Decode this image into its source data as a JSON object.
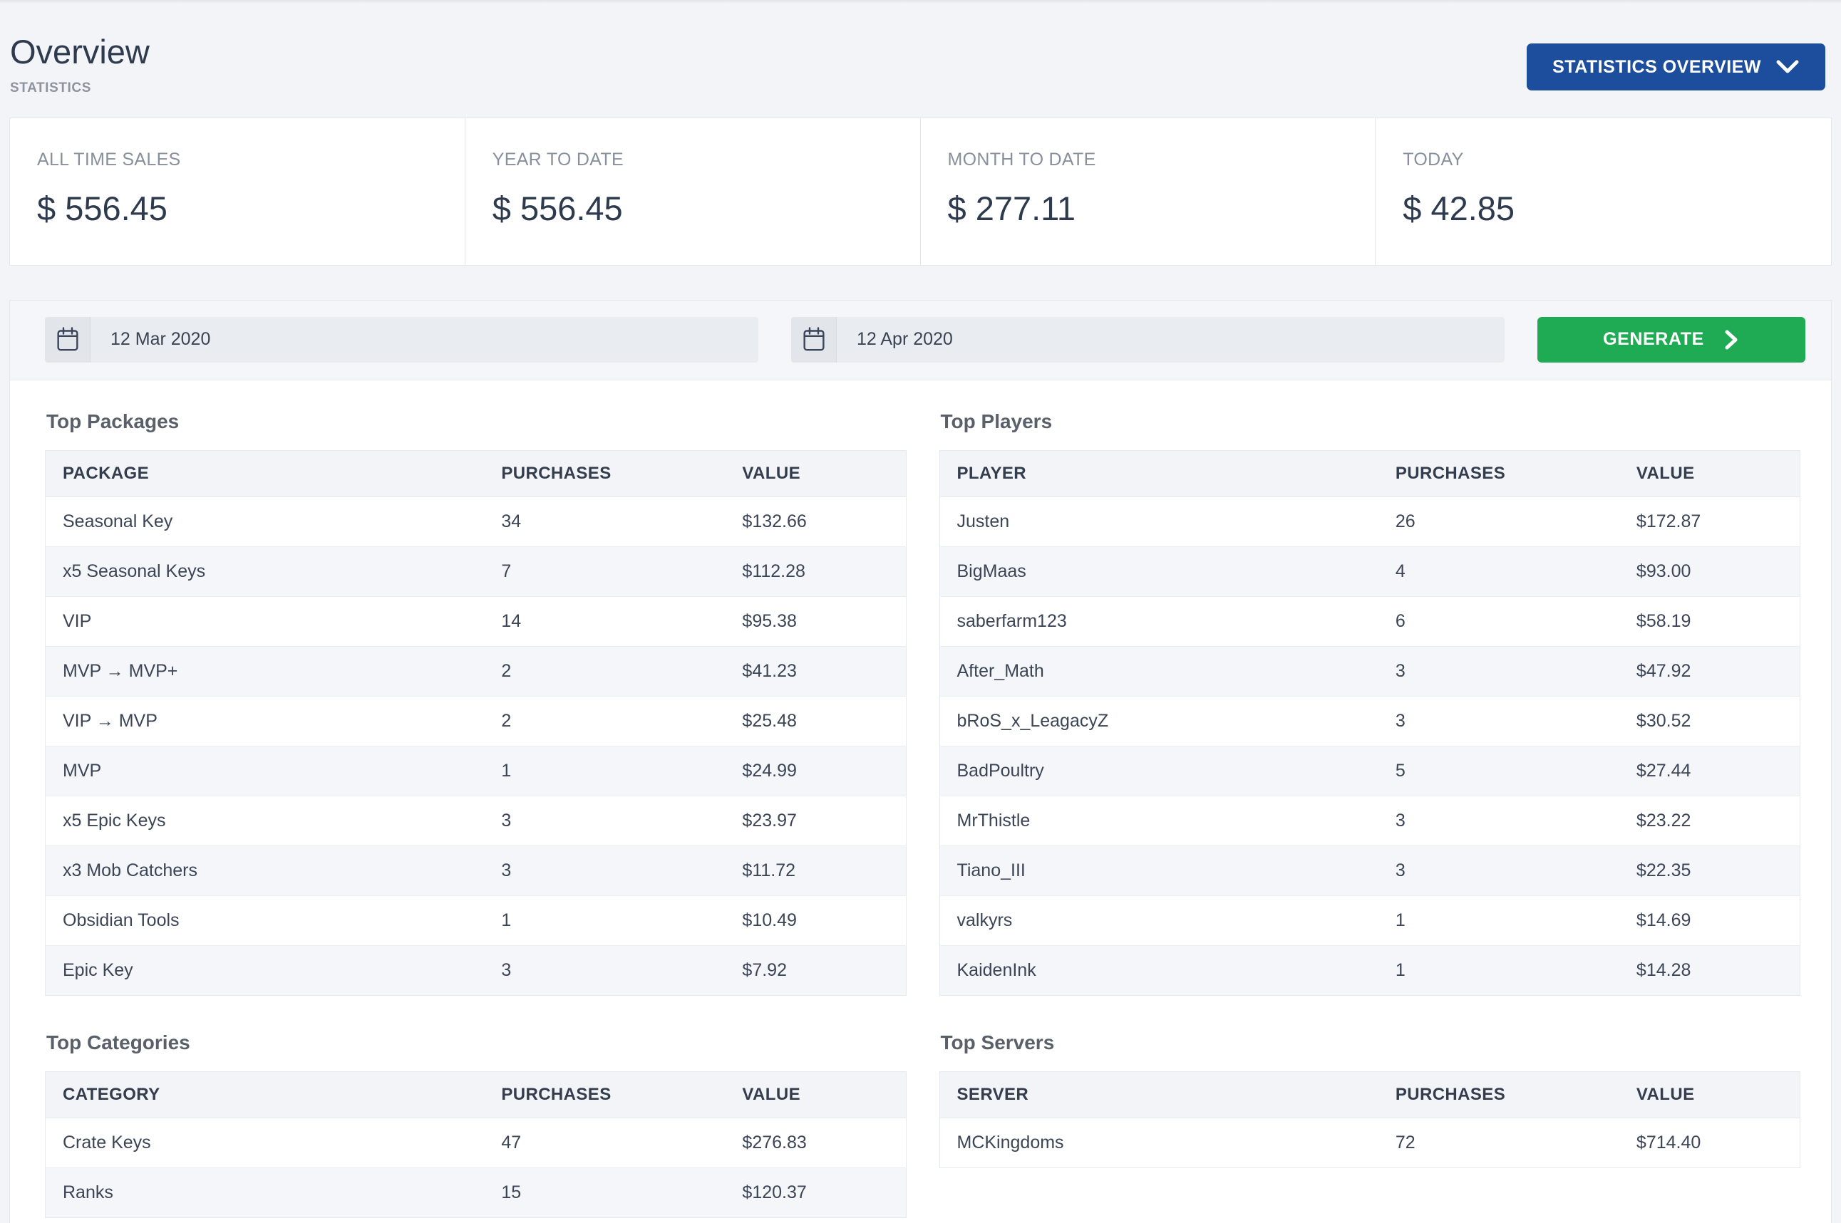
{
  "page": {
    "title": "Overview",
    "subtitle": "STATISTICS"
  },
  "header": {
    "dropdown_label": "STATISTICS OVERVIEW"
  },
  "colors": {
    "accent_blue": "#1d4e9e",
    "accent_green": "#1fab53",
    "text_dark": "#2e3a4d",
    "text_grey": "#87909c",
    "stripe_row": "#f4f6f9"
  },
  "stats": [
    {
      "label": "ALL TIME SALES",
      "value": "$ 556.45"
    },
    {
      "label": "YEAR TO DATE",
      "value": "$ 556.45"
    },
    {
      "label": "MONTH TO DATE",
      "value": "$ 277.11"
    },
    {
      "label": "TODAY",
      "value": "$ 42.85"
    }
  ],
  "filters": {
    "date_from": "12 Mar 2020",
    "date_to": "12 Apr 2020",
    "generate_label": "GENERATE"
  },
  "tables": {
    "top_packages": {
      "title": "Top Packages",
      "columns": [
        "PACKAGE",
        "PURCHASES",
        "VALUE"
      ],
      "rows": [
        [
          "Seasonal Key",
          "34",
          "$132.66"
        ],
        [
          "x5 Seasonal Keys",
          "7",
          "$112.28"
        ],
        [
          "VIP",
          "14",
          "$95.38"
        ],
        [
          "MVP → MVP+",
          "2",
          "$41.23"
        ],
        [
          "VIP → MVP",
          "2",
          "$25.48"
        ],
        [
          "MVP",
          "1",
          "$24.99"
        ],
        [
          "x5 Epic Keys",
          "3",
          "$23.97"
        ],
        [
          "x3 Mob Catchers",
          "3",
          "$11.72"
        ],
        [
          "Obsidian Tools",
          "1",
          "$10.49"
        ],
        [
          "Epic Key",
          "3",
          "$7.92"
        ]
      ]
    },
    "top_players": {
      "title": "Top Players",
      "columns": [
        "PLAYER",
        "PURCHASES",
        "VALUE"
      ],
      "rows": [
        [
          "Justen",
          "26",
          "$172.87"
        ],
        [
          "BigMaas",
          "4",
          "$93.00"
        ],
        [
          "saberfarm123",
          "6",
          "$58.19"
        ],
        [
          "After_Math",
          "3",
          "$47.92"
        ],
        [
          "bRoS_x_LeagacyZ",
          "3",
          "$30.52"
        ],
        [
          "BadPoultry",
          "5",
          "$27.44"
        ],
        [
          "MrThistle",
          "3",
          "$23.22"
        ],
        [
          "Tiano_III",
          "3",
          "$22.35"
        ],
        [
          "valkyrs",
          "1",
          "$14.69"
        ],
        [
          "KaidenInk",
          "1",
          "$14.28"
        ]
      ]
    },
    "top_categories": {
      "title": "Top Categories",
      "columns": [
        "CATEGORY",
        "PURCHASES",
        "VALUE"
      ],
      "rows": [
        [
          "Crate Keys",
          "47",
          "$276.83"
        ],
        [
          "Ranks",
          "15",
          "$120.37"
        ]
      ]
    },
    "top_servers": {
      "title": "Top Servers",
      "columns": [
        "SERVER",
        "PURCHASES",
        "VALUE"
      ],
      "rows": [
        [
          "MCKingdoms",
          "72",
          "$714.40"
        ]
      ]
    }
  }
}
